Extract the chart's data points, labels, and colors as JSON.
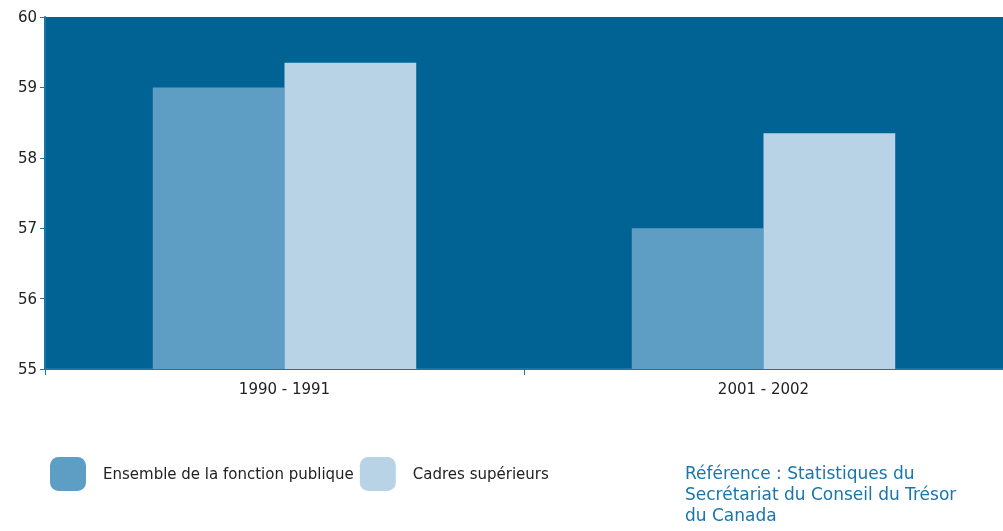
{
  "chart_data": {
    "type": "bar",
    "categories": [
      "1990 - 1991",
      "2001 - 2002"
    ],
    "series": [
      {
        "name": "Ensemble de la fonction publique",
        "color": "#5e9ec4",
        "values": [
          59.0,
          57.0
        ]
      },
      {
        "name": "Cadres supérieurs",
        "color": "#b8d3e5",
        "values": [
          59.35,
          58.35
        ]
      }
    ],
    "ylim": [
      55,
      60
    ],
    "yticks": [
      55,
      56,
      57,
      58,
      59,
      60
    ],
    "grid": false,
    "legend": "bottom left",
    "annotations": [
      "Référence : Statistiques du Secrétariat du Conseil du Trésor du Canada"
    ]
  }
}
